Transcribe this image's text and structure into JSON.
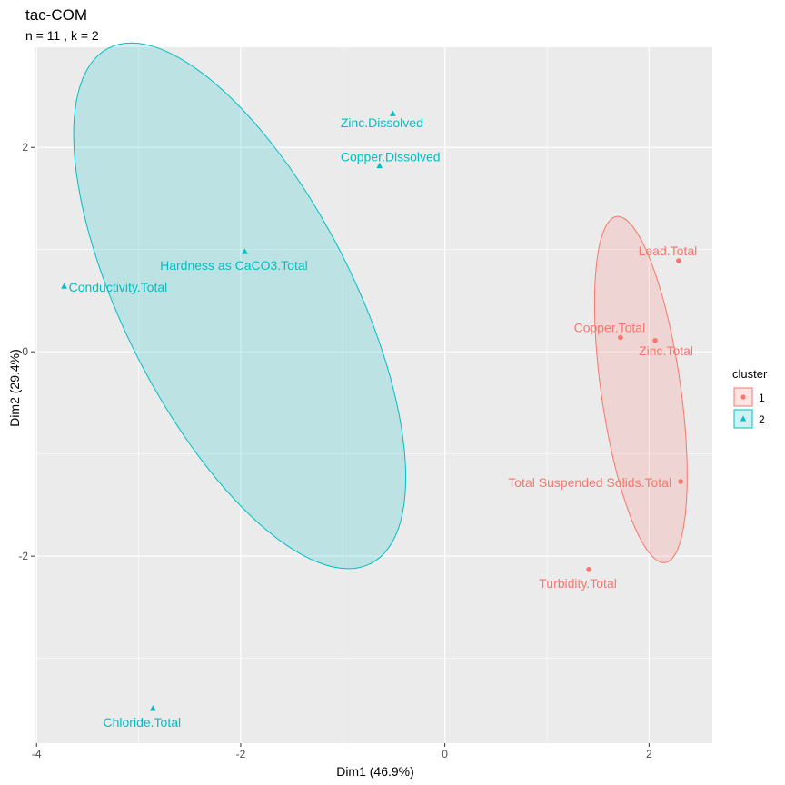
{
  "chart_data": {
    "type": "scatter",
    "title": "tac-COM",
    "subtitle": "n = 11 , k =  2",
    "xlabel": "Dim1 (46.9%)",
    "ylabel": "Dim2 (29.4%)",
    "xlim": [
      -4.02,
      2.62
    ],
    "ylim": [
      -3.83,
      2.98
    ],
    "xticks": [
      -4,
      -2,
      0,
      2
    ],
    "xtick_labels": [
      "-4",
      "-2",
      "0",
      "2"
    ],
    "yticks": [
      -2,
      0,
      2
    ],
    "ytick_labels": [
      "-2",
      "0",
      "2"
    ],
    "grid": true,
    "legend": {
      "title": "cluster",
      "position": "right",
      "entries": [
        "1",
        "2"
      ]
    },
    "colors": {
      "1": "#F8766D",
      "2": "#00BFC4",
      "panel": "#EBEBEB",
      "grid": "#FFFFFF"
    },
    "points": [
      {
        "label": "Lead.Total",
        "x": 2.29,
        "y": 0.89,
        "cluster": "1"
      },
      {
        "label": "Copper.Total",
        "x": 1.72,
        "y": 0.14,
        "cluster": "1"
      },
      {
        "label": "Zinc.Total",
        "x": 2.06,
        "y": 0.11,
        "cluster": "1"
      },
      {
        "label": "Total Suspended Solids.Total",
        "x": 2.31,
        "y": -1.27,
        "cluster": "1"
      },
      {
        "label": "Turbidity.Total",
        "x": 1.41,
        "y": -2.13,
        "cluster": "1"
      },
      {
        "label": "Zinc.Dissolved",
        "x": -0.51,
        "y": 2.33,
        "cluster": "2"
      },
      {
        "label": "Copper.Dissolved",
        "x": -0.64,
        "y": 1.82,
        "cluster": "2"
      },
      {
        "label": "Hardness as CaCO3.Total",
        "x": -1.96,
        "y": 0.98,
        "cluster": "2"
      },
      {
        "label": "Conductivity.Total",
        "x": -3.73,
        "y": 0.64,
        "cluster": "2"
      },
      {
        "label": "Chloride.Total",
        "x": -2.86,
        "y": -3.49,
        "cluster": "2"
      }
    ],
    "ellipses": [
      {
        "cluster": "1",
        "center": [
          1.92,
          -0.37
        ],
        "semi_axes": [
          0.39,
          1.71
        ],
        "angle_deg": 8
      },
      {
        "cluster": "2",
        "center": [
          -2.01,
          0.45
        ],
        "semi_axes": [
          1.12,
          2.83
        ],
        "angle_deg": 27
      }
    ]
  }
}
